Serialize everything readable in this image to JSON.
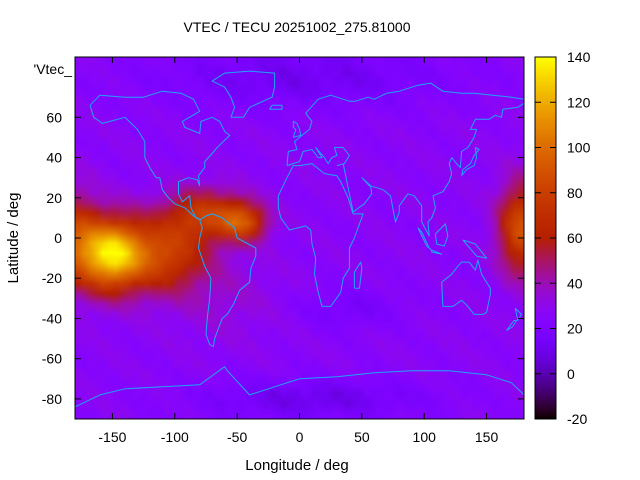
{
  "chart_data": {
    "type": "heatmap",
    "title": "VTEC / TECU 20251002_275.81000",
    "xlabel": "Longitude / deg",
    "ylabel": "Latitude / deg",
    "series_label": "'Vtec_",
    "xlim": [
      -180,
      180
    ],
    "ylim": [
      -90,
      90
    ],
    "x_ticks": [
      -150,
      -100,
      -50,
      0,
      50,
      100,
      150
    ],
    "y_ticks": [
      60,
      40,
      20,
      0,
      -20,
      -40,
      -60,
      -80
    ],
    "y_tick_labels": [
      "60",
      "40",
      "20",
      "0",
      "-20",
      "-40",
      "-60",
      "-80"
    ],
    "colorbar": {
      "min": -20,
      "max": 140,
      "ticks": [
        140,
        120,
        100,
        80,
        60,
        40,
        20,
        0,
        -20
      ],
      "palette": "gnuplot (black-purple-red-orange-yellow)"
    },
    "map_overlay": "coastlines",
    "ionization_peak": {
      "lon": -150,
      "lat": -10,
      "vtec": 130
    },
    "background_vtec": 25
  },
  "colors": {
    "coastline": "#1ea6ff",
    "frame": "#000000"
  }
}
